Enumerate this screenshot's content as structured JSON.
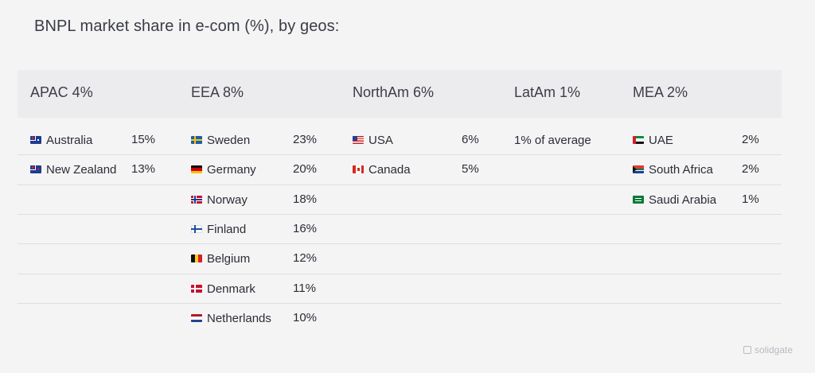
{
  "title": "BNPL market share in e-com (%), by geos:",
  "brand": "solidgate",
  "chart_data": {
    "type": "table",
    "regions": [
      {
        "header": "APAC 4%",
        "name": "APAC",
        "share": 4,
        "rows": [
          {
            "country": "Australia",
            "flag": "flag-australia-icon",
            "value": "15%"
          },
          {
            "country": "New Zealand",
            "flag": "flag-new-zealand-icon",
            "value": "13%"
          }
        ]
      },
      {
        "header": "EEA 8%",
        "name": "EEA",
        "share": 8,
        "rows": [
          {
            "country": "Sweden",
            "flag": "flag-sweden-icon",
            "value": "23%"
          },
          {
            "country": "Germany",
            "flag": "flag-germany-icon",
            "value": "20%"
          },
          {
            "country": "Norway",
            "flag": "flag-norway-icon",
            "value": "18%"
          },
          {
            "country": "Finland",
            "flag": "flag-finland-icon",
            "value": "16%"
          },
          {
            "country": "Belgium",
            "flag": "flag-belgium-icon",
            "value": "12%"
          },
          {
            "country": "Denmark",
            "flag": "flag-denmark-icon",
            "value": "11%"
          },
          {
            "country": "Netherlands",
            "flag": "flag-netherlands-icon",
            "value": "10%"
          }
        ]
      },
      {
        "header": "NorthAm 6%",
        "name": "NorthAm",
        "share": 6,
        "rows": [
          {
            "country": "USA",
            "flag": "flag-usa-icon",
            "value": "6%"
          },
          {
            "country": "Canada",
            "flag": "flag-canada-icon",
            "value": "5%"
          }
        ]
      },
      {
        "header": "LatAm 1%",
        "name": "LatAm",
        "share": 1,
        "rows": [
          {
            "country": "1% of average",
            "flag": "",
            "value": ""
          }
        ]
      },
      {
        "header": "MEA 2%",
        "name": "MEA",
        "share": 2,
        "rows": [
          {
            "country": "UAE",
            "flag": "flag-uae-icon",
            "value": "2%"
          },
          {
            "country": "South Africa",
            "flag": "flag-south-africa-icon",
            "value": "2%"
          },
          {
            "country": "Saudi Arabia",
            "flag": "flag-saudi-arabia-icon",
            "value": "1%"
          }
        ]
      }
    ]
  },
  "colors": {
    "background": "#f4f4f5",
    "header_band": "#ececee",
    "row_divider": "#dfdfe2",
    "text": "#2b2d35"
  }
}
